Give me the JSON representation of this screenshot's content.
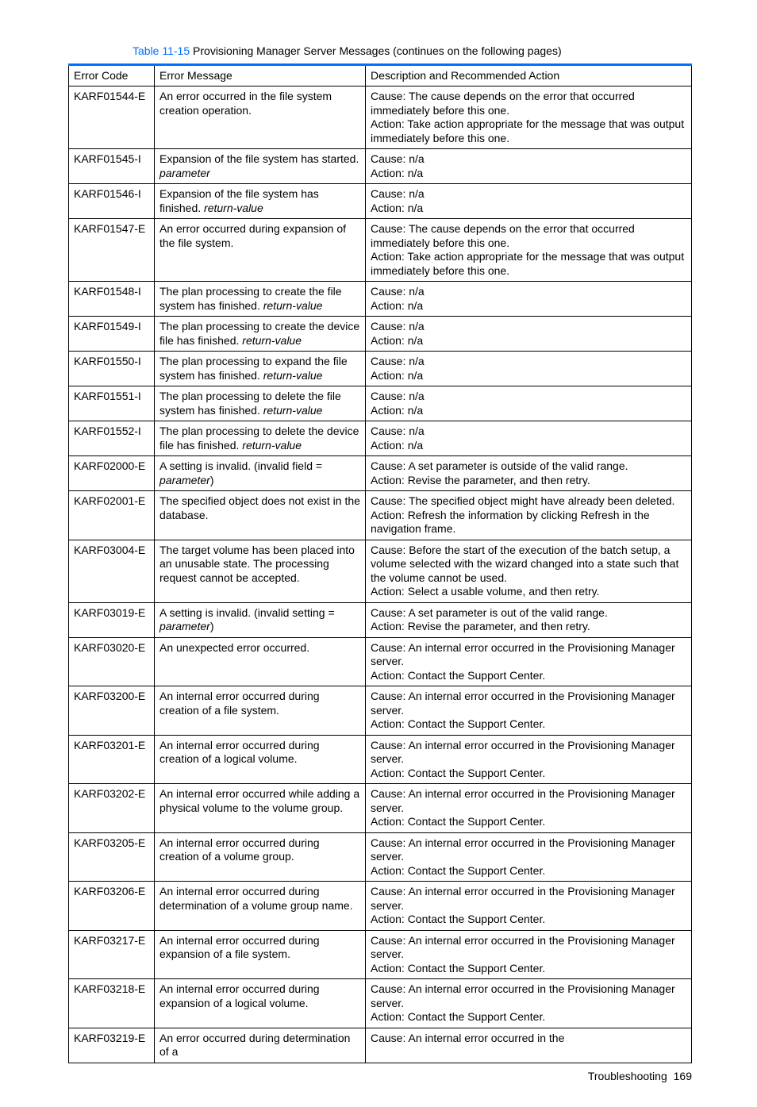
{
  "caption": {
    "prefix": "Table 11-15",
    "text": " Provisioning Manager Server Messages (continues on the following pages)"
  },
  "columns": {
    "code": "Error Code",
    "message": "Error Message",
    "desc": "Description and Recommended Action"
  },
  "footer": {
    "section": "Troubleshooting",
    "page": "169"
  },
  "rows": [
    {
      "code": "KARF01544-E",
      "message": [
        {
          "t": "An error occurred in the file system creation operation."
        }
      ],
      "desc": [
        {
          "t": "Cause: The cause depends on the error that occurred immediately before this one."
        },
        {
          "t": "Action: Take action appropriate for the message that was output immediately before this one."
        }
      ]
    },
    {
      "code": "KARF01545-I",
      "message": [
        {
          "t": "Expansion of the file system has started. "
        },
        {
          "t": "parameter",
          "i": true
        }
      ],
      "desc": [
        {
          "t": "Cause: n/a"
        },
        {
          "t": "Action: n/a"
        }
      ]
    },
    {
      "code": "KARF01546-I",
      "message": [
        {
          "t": "Expansion of the file system has finished. "
        },
        {
          "t": "return-value",
          "i": true
        }
      ],
      "desc": [
        {
          "t": "Cause: n/a"
        },
        {
          "t": "Action: n/a"
        }
      ]
    },
    {
      "code": "KARF01547-E",
      "message": [
        {
          "t": "An error occurred during expansion of the file system."
        }
      ],
      "desc": [
        {
          "t": "Cause: The cause depends on the error that occurred immediately before this one."
        },
        {
          "t": "Action: Take action appropriate for the message that was output immediately before this one."
        }
      ]
    },
    {
      "code": "KARF01548-I",
      "message": [
        {
          "t": "The plan processing to create the file system has finished. "
        },
        {
          "t": "return-value",
          "i": true
        }
      ],
      "desc": [
        {
          "t": "Cause: n/a"
        },
        {
          "t": "Action: n/a"
        }
      ]
    },
    {
      "code": "KARF01549-I",
      "message": [
        {
          "t": "The plan processing to create the device file has finished. "
        },
        {
          "t": "return-value",
          "i": true
        }
      ],
      "desc": [
        {
          "t": "Cause: n/a"
        },
        {
          "t": "Action: n/a"
        }
      ]
    },
    {
      "code": "KARF01550-I",
      "message": [
        {
          "t": "The plan processing to expand the file system has finished. "
        },
        {
          "t": "return-value",
          "i": true
        }
      ],
      "desc": [
        {
          "t": "Cause: n/a"
        },
        {
          "t": "Action: n/a"
        }
      ]
    },
    {
      "code": "KARF01551-I",
      "message": [
        {
          "t": "The plan processing to delete the file system has finished. "
        },
        {
          "t": "return-value",
          "i": true
        }
      ],
      "desc": [
        {
          "t": "Cause: n/a"
        },
        {
          "t": "Action: n/a"
        }
      ]
    },
    {
      "code": "KARF01552-I",
      "message": [
        {
          "t": "The plan processing to delete the device file has finished. "
        },
        {
          "t": "return-value",
          "i": true
        }
      ],
      "desc": [
        {
          "t": "Cause: n/a"
        },
        {
          "t": "Action: n/a"
        }
      ]
    },
    {
      "code": "KARF02000-E",
      "message": [
        {
          "t": "A setting is invalid. (invalid field = "
        },
        {
          "t": "parameter",
          "i": true
        },
        {
          "t": ")"
        }
      ],
      "desc": [
        {
          "t": "Cause: A set parameter is outside of the valid range."
        },
        {
          "t": "Action: Revise the parameter, and then retry."
        }
      ]
    },
    {
      "code": "KARF02001-E",
      "message": [
        {
          "t": "The specified object does not exist in the database."
        }
      ],
      "desc": [
        {
          "t": "Cause: The specified object might have already been deleted."
        },
        {
          "t": "Action: Refresh the information by clicking Refresh in the navigation frame."
        }
      ]
    },
    {
      "code": "KARF03004-E",
      "message": [
        {
          "t": "The target volume has been placed into an unusable state. The processing request cannot be accepted."
        }
      ],
      "desc": [
        {
          "t": "Cause: Before the start of the execution of the batch setup, a volume selected with the wizard changed into a state such that the volume cannot be used."
        },
        {
          "t": "Action: Select a usable volume, and then retry."
        }
      ]
    },
    {
      "code": "KARF03019-E",
      "message": [
        {
          "t": "A setting is invalid. (invalid setting = "
        },
        {
          "t": "parameter",
          "i": true
        },
        {
          "t": ")"
        }
      ],
      "desc": [
        {
          "t": "Cause: A set parameter is out of the valid range."
        },
        {
          "t": "Action: Revise the parameter, and then retry."
        }
      ]
    },
    {
      "code": "KARF03020-E",
      "message": [
        {
          "t": "An unexpected error occurred."
        }
      ],
      "desc": [
        {
          "t": "Cause: An internal error occurred in the Provisioning Manager server."
        },
        {
          "t": "Action: Contact the Support Center."
        }
      ]
    },
    {
      "code": "KARF03200-E",
      "message": [
        {
          "t": "An internal error occurred during creation of a file system."
        }
      ],
      "desc": [
        {
          "t": "Cause: An internal error occurred in the Provisioning Manager server."
        },
        {
          "t": "Action: Contact the Support Center."
        }
      ]
    },
    {
      "code": "KARF03201-E",
      "message": [
        {
          "t": "An internal error occurred during creation of a logical volume."
        }
      ],
      "desc": [
        {
          "t": "Cause: An internal error occurred in the Provisioning Manager server."
        },
        {
          "t": "Action: Contact the Support Center."
        }
      ]
    },
    {
      "code": "KARF03202-E",
      "message": [
        {
          "t": "An internal error occurred while adding a physical volume to the volume group."
        }
      ],
      "desc": [
        {
          "t": "Cause: An internal error occurred in the Provisioning Manager server."
        },
        {
          "t": "Action: Contact the Support Center."
        }
      ]
    },
    {
      "code": "KARF03205-E",
      "message": [
        {
          "t": "An internal error occurred during creation of a volume group."
        }
      ],
      "desc": [
        {
          "t": "Cause: An internal error occurred in the Provisioning Manager server."
        },
        {
          "t": "Action: Contact the Support Center."
        }
      ]
    },
    {
      "code": "KARF03206-E",
      "message": [
        {
          "t": "An internal error occurred during determination of a volume group name."
        }
      ],
      "desc": [
        {
          "t": "Cause: An internal error occurred in the Provisioning Manager server."
        },
        {
          "t": "Action: Contact the Support Center."
        }
      ]
    },
    {
      "code": "KARF03217-E",
      "message": [
        {
          "t": "An internal error occurred during expansion of a file system."
        }
      ],
      "desc": [
        {
          "t": "Cause: An internal error occurred in the Provisioning Manager server."
        },
        {
          "t": "Action: Contact the Support Center."
        }
      ]
    },
    {
      "code": "KARF03218-E",
      "message": [
        {
          "t": "An internal error occurred during expansion of a logical volume."
        }
      ],
      "desc": [
        {
          "t": "Cause: An internal error occurred in the Provisioning Manager server."
        },
        {
          "t": "Action: Contact the Support Center."
        }
      ]
    },
    {
      "code": "KARF03219-E",
      "message": [
        {
          "t": "An error occurred during determination of a"
        }
      ],
      "desc": [
        {
          "t": "Cause: An internal error occurred in the"
        }
      ]
    }
  ]
}
